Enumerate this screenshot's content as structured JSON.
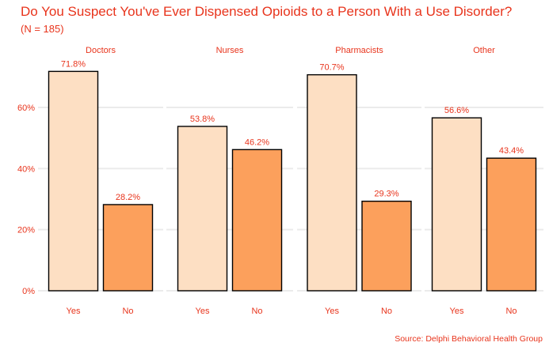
{
  "title": "Do You Suspect You've Ever Dispensed Opioids to a Person With a Use Disorder?",
  "subtitle": "(N = 185)",
  "caption": "Source: Delphi Behavioral Health Group",
  "colors": {
    "text": "#e8341c",
    "yes_fill": "#fddfc3",
    "no_fill": "#fca05c",
    "bar_stroke": "#000000",
    "grid": "#ebebeb"
  },
  "chart_data": {
    "type": "bar",
    "facets": [
      "Doctors",
      "Nurses",
      "Pharmacists",
      "Other"
    ],
    "categories": [
      "Yes",
      "No"
    ],
    "values": [
      [
        71.8,
        28.2
      ],
      [
        53.8,
        46.2
      ],
      [
        70.7,
        29.3
      ],
      [
        56.6,
        43.4
      ]
    ],
    "data_labels": [
      [
        "71.8%",
        "28.2%"
      ],
      [
        "53.8%",
        "46.2%"
      ],
      [
        "70.7%",
        "29.3%"
      ],
      [
        "56.6%",
        "43.4%"
      ]
    ],
    "y_ticks": [
      0,
      20,
      40,
      60
    ],
    "y_tick_labels": [
      "0%",
      "20%",
      "40%",
      "60%"
    ],
    "ylim": [
      0,
      75
    ],
    "xlabel": "",
    "ylabel": "",
    "grid": true,
    "legend": "none"
  }
}
